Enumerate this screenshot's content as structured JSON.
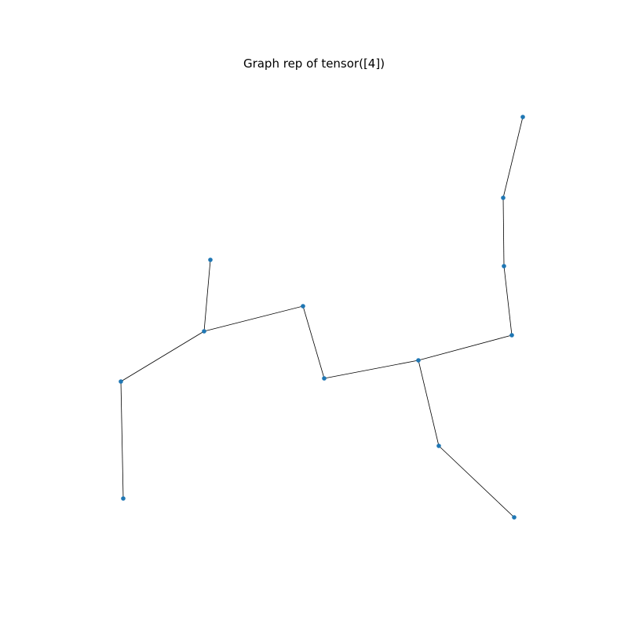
{
  "title": "Graph rep of tensor([4])",
  "colors": {
    "node": "#1f77b4",
    "edge": "#000000",
    "background": "#ffffff"
  },
  "graph": {
    "nodes": [
      "n0",
      "n1",
      "n2",
      "n3",
      "n4",
      "n5",
      "n6",
      "n7",
      "n8",
      "n9",
      "n10",
      "n11",
      "n12"
    ],
    "edges": [
      [
        "n0",
        "n1"
      ],
      [
        "n1",
        "n2"
      ],
      [
        "n2",
        "n3"
      ],
      [
        "n3",
        "n4"
      ],
      [
        "n4",
        "n5"
      ],
      [
        "n5",
        "n6"
      ],
      [
        "n6",
        "n7"
      ],
      [
        "n7",
        "n8"
      ],
      [
        "n8",
        "n9"
      ],
      [
        "n8",
        "n10"
      ],
      [
        "n10",
        "n11"
      ],
      [
        "n9",
        "n12"
      ]
    ]
  }
}
